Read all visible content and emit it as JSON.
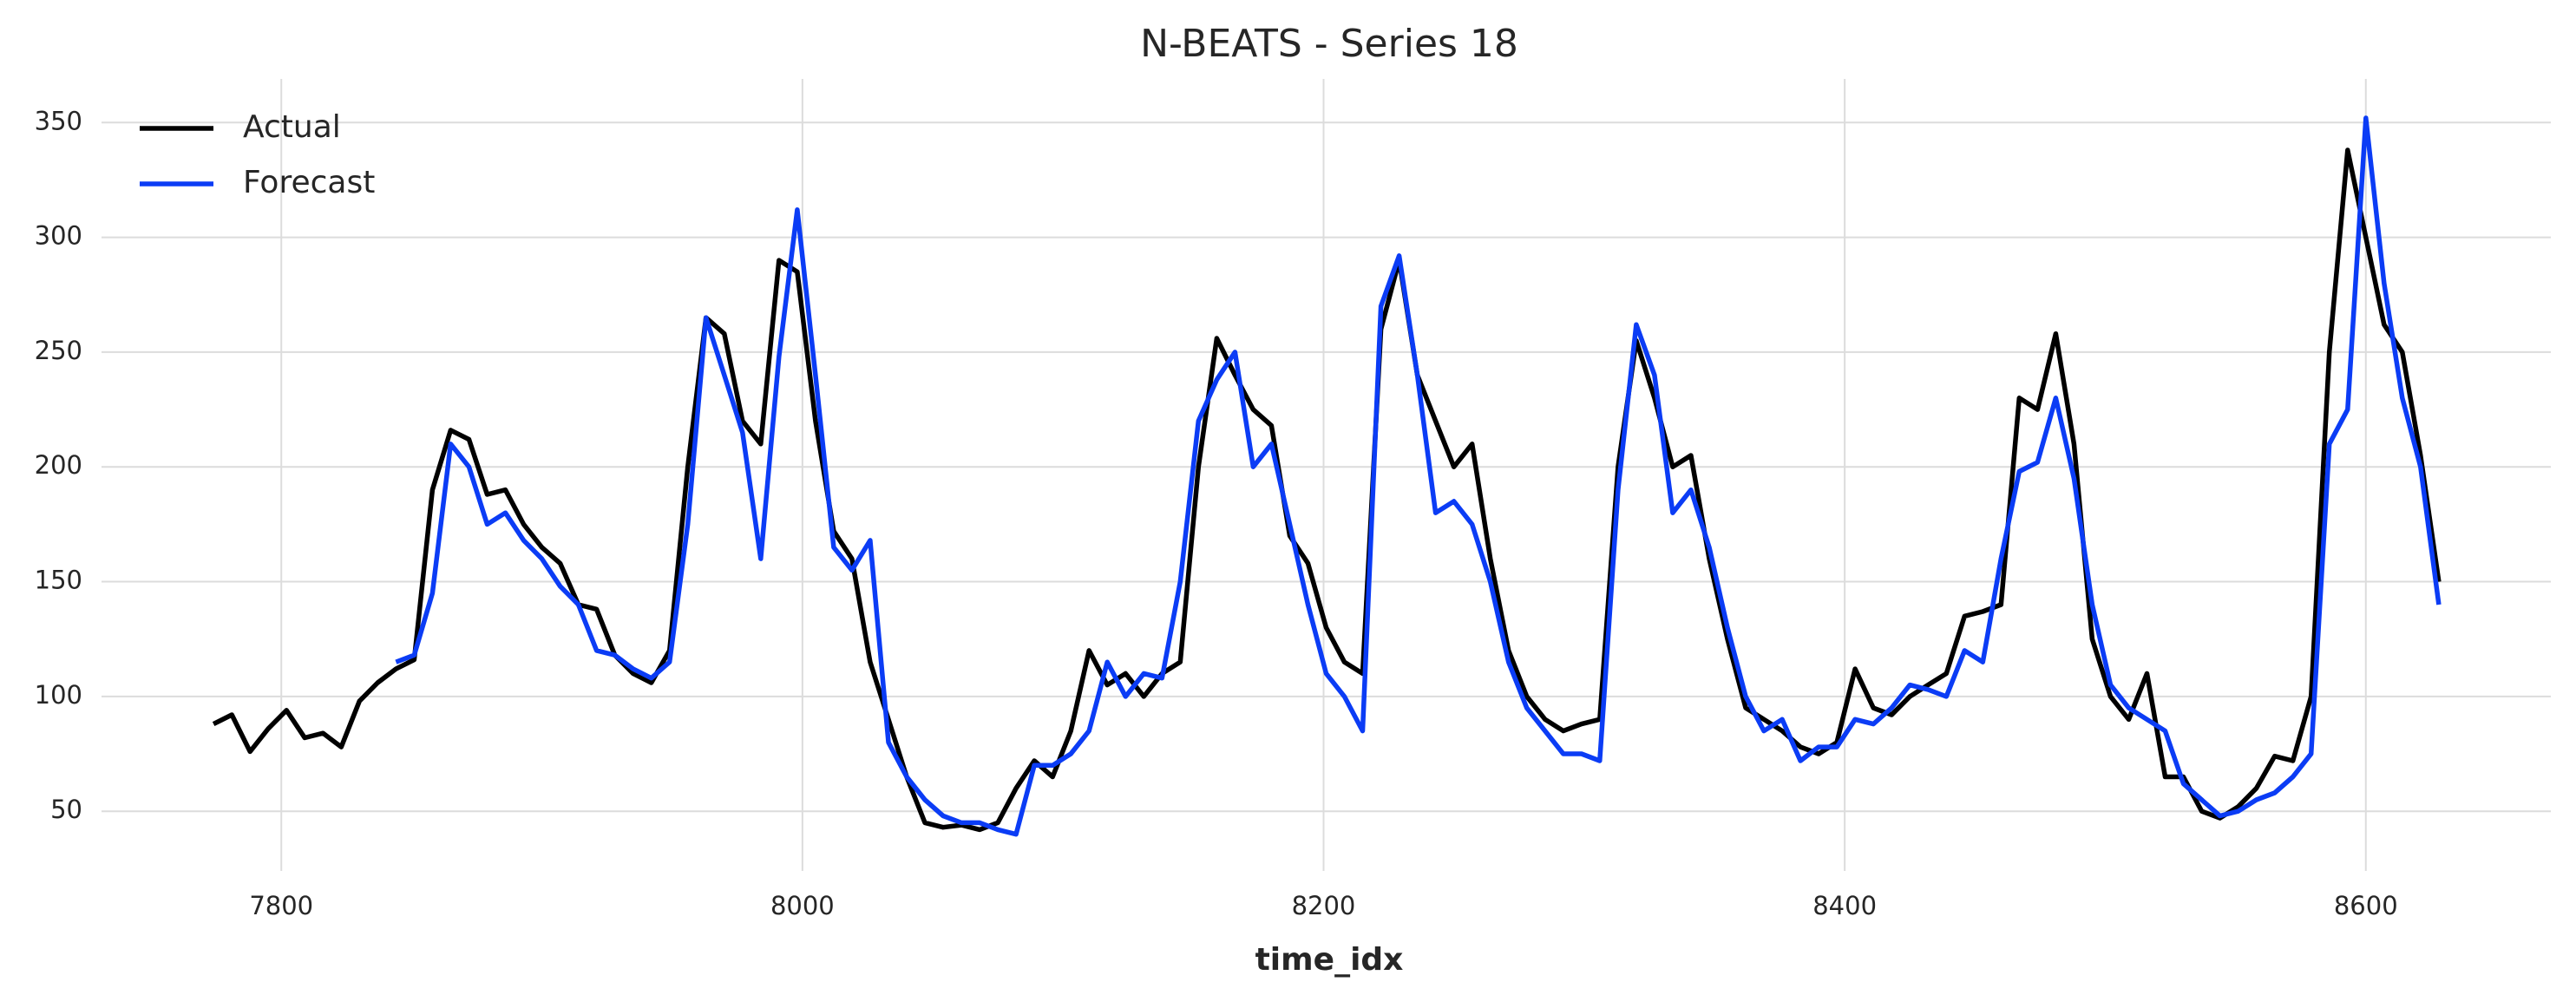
{
  "chart_data": {
    "type": "line",
    "title": "N-BEATS - Series 18",
    "x_label": "time_idx",
    "x": [
      7774,
      7781,
      7788,
      7795,
      7802,
      7809,
      7816,
      7823,
      7830,
      7837,
      7844,
      7851,
      7858,
      7865,
      7872,
      7879,
      7886,
      7893,
      7900,
      7907,
      7914,
      7921,
      7928,
      7935,
      7942,
      7949,
      7956,
      7963,
      7970,
      7977,
      7984,
      7991,
      7998,
      8005,
      8012,
      8019,
      8026,
      8033,
      8040,
      8047,
      8054,
      8061,
      8068,
      8075,
      8082,
      8089,
      8096,
      8103,
      8110,
      8117,
      8124,
      8131,
      8138,
      8145,
      8152,
      8159,
      8166,
      8173,
      8180,
      8187,
      8194,
      8201,
      8208,
      8215,
      8222,
      8229,
      8236,
      8243,
      8250,
      8257,
      8264,
      8271,
      8278,
      8285,
      8292,
      8299,
      8306,
      8313,
      8320,
      8327,
      8334,
      8341,
      8348,
      8355,
      8362,
      8369,
      8376,
      8383,
      8390,
      8397,
      8404,
      8411,
      8418,
      8425,
      8432,
      8439,
      8446,
      8453,
      8460,
      8467,
      8474,
      8481,
      8488,
      8495,
      8502,
      8509,
      8516,
      8523,
      8530,
      8537,
      8544,
      8551,
      8558,
      8565,
      8572,
      8579,
      8586,
      8593,
      8600,
      8607,
      8614,
      8621,
      8628
    ],
    "series": [
      {
        "name": "Actual",
        "color": "#000000",
        "values": [
          88,
          92,
          76,
          86,
          94,
          82,
          84,
          78,
          98,
          106,
          112,
          116,
          190,
          216,
          212,
          188,
          190,
          175,
          165,
          158,
          140,
          138,
          118,
          110,
          106,
          120,
          200,
          265,
          258,
          220,
          210,
          290,
          285,
          220,
          172,
          160,
          115,
          90,
          65,
          45,
          43,
          44,
          42,
          45,
          60,
          72,
          65,
          85,
          120,
          105,
          110,
          100,
          110,
          115,
          200,
          256,
          240,
          225,
          218,
          170,
          158,
          130,
          115,
          110,
          260,
          290,
          240,
          220,
          200,
          210,
          160,
          120,
          100,
          90,
          85,
          88,
          90,
          200,
          255,
          230,
          200,
          205,
          160,
          125,
          95,
          90,
          85,
          78,
          75,
          80,
          112,
          95,
          92,
          100,
          105,
          110,
          135,
          137,
          140,
          230,
          225,
          258,
          210,
          125,
          100,
          90,
          110,
          65,
          65,
          50,
          47,
          52,
          60,
          74,
          72,
          100,
          250,
          338,
          300,
          262,
          250,
          205,
          150
        ]
      },
      {
        "name": "Forecast",
        "color": "#0b3cf5",
        "values": [
          null,
          null,
          null,
          null,
          null,
          null,
          null,
          null,
          null,
          null,
          115,
          118,
          145,
          210,
          200,
          175,
          180,
          168,
          160,
          148,
          140,
          120,
          118,
          112,
          108,
          115,
          175,
          265,
          240,
          215,
          160,
          248,
          312,
          240,
          165,
          155,
          168,
          80,
          65,
          55,
          48,
          45,
          45,
          42,
          40,
          70,
          70,
          75,
          85,
          115,
          100,
          110,
          108,
          150,
          220,
          238,
          250,
          200,
          210,
          175,
          140,
          110,
          100,
          85,
          270,
          292,
          240,
          180,
          185,
          175,
          150,
          115,
          95,
          85,
          75,
          75,
          72,
          190,
          262,
          240,
          180,
          190,
          165,
          130,
          100,
          85,
          90,
          72,
          78,
          78,
          90,
          88,
          95,
          105,
          103,
          100,
          120,
          115,
          160,
          198,
          202,
          230,
          195,
          140,
          105,
          95,
          90,
          85,
          62,
          55,
          48,
          50,
          55,
          58,
          65,
          75,
          210,
          225,
          352,
          280,
          230,
          200,
          140
        ]
      }
    ],
    "xlim": [
      7731,
      8671
    ],
    "xticks": [
      7800,
      8000,
      8200,
      8400,
      8600
    ],
    "ylim": [
      24,
      369
    ],
    "yticks": [
      50,
      100,
      150,
      200,
      250,
      300,
      350
    ],
    "grid": true,
    "legend": "upper left"
  }
}
